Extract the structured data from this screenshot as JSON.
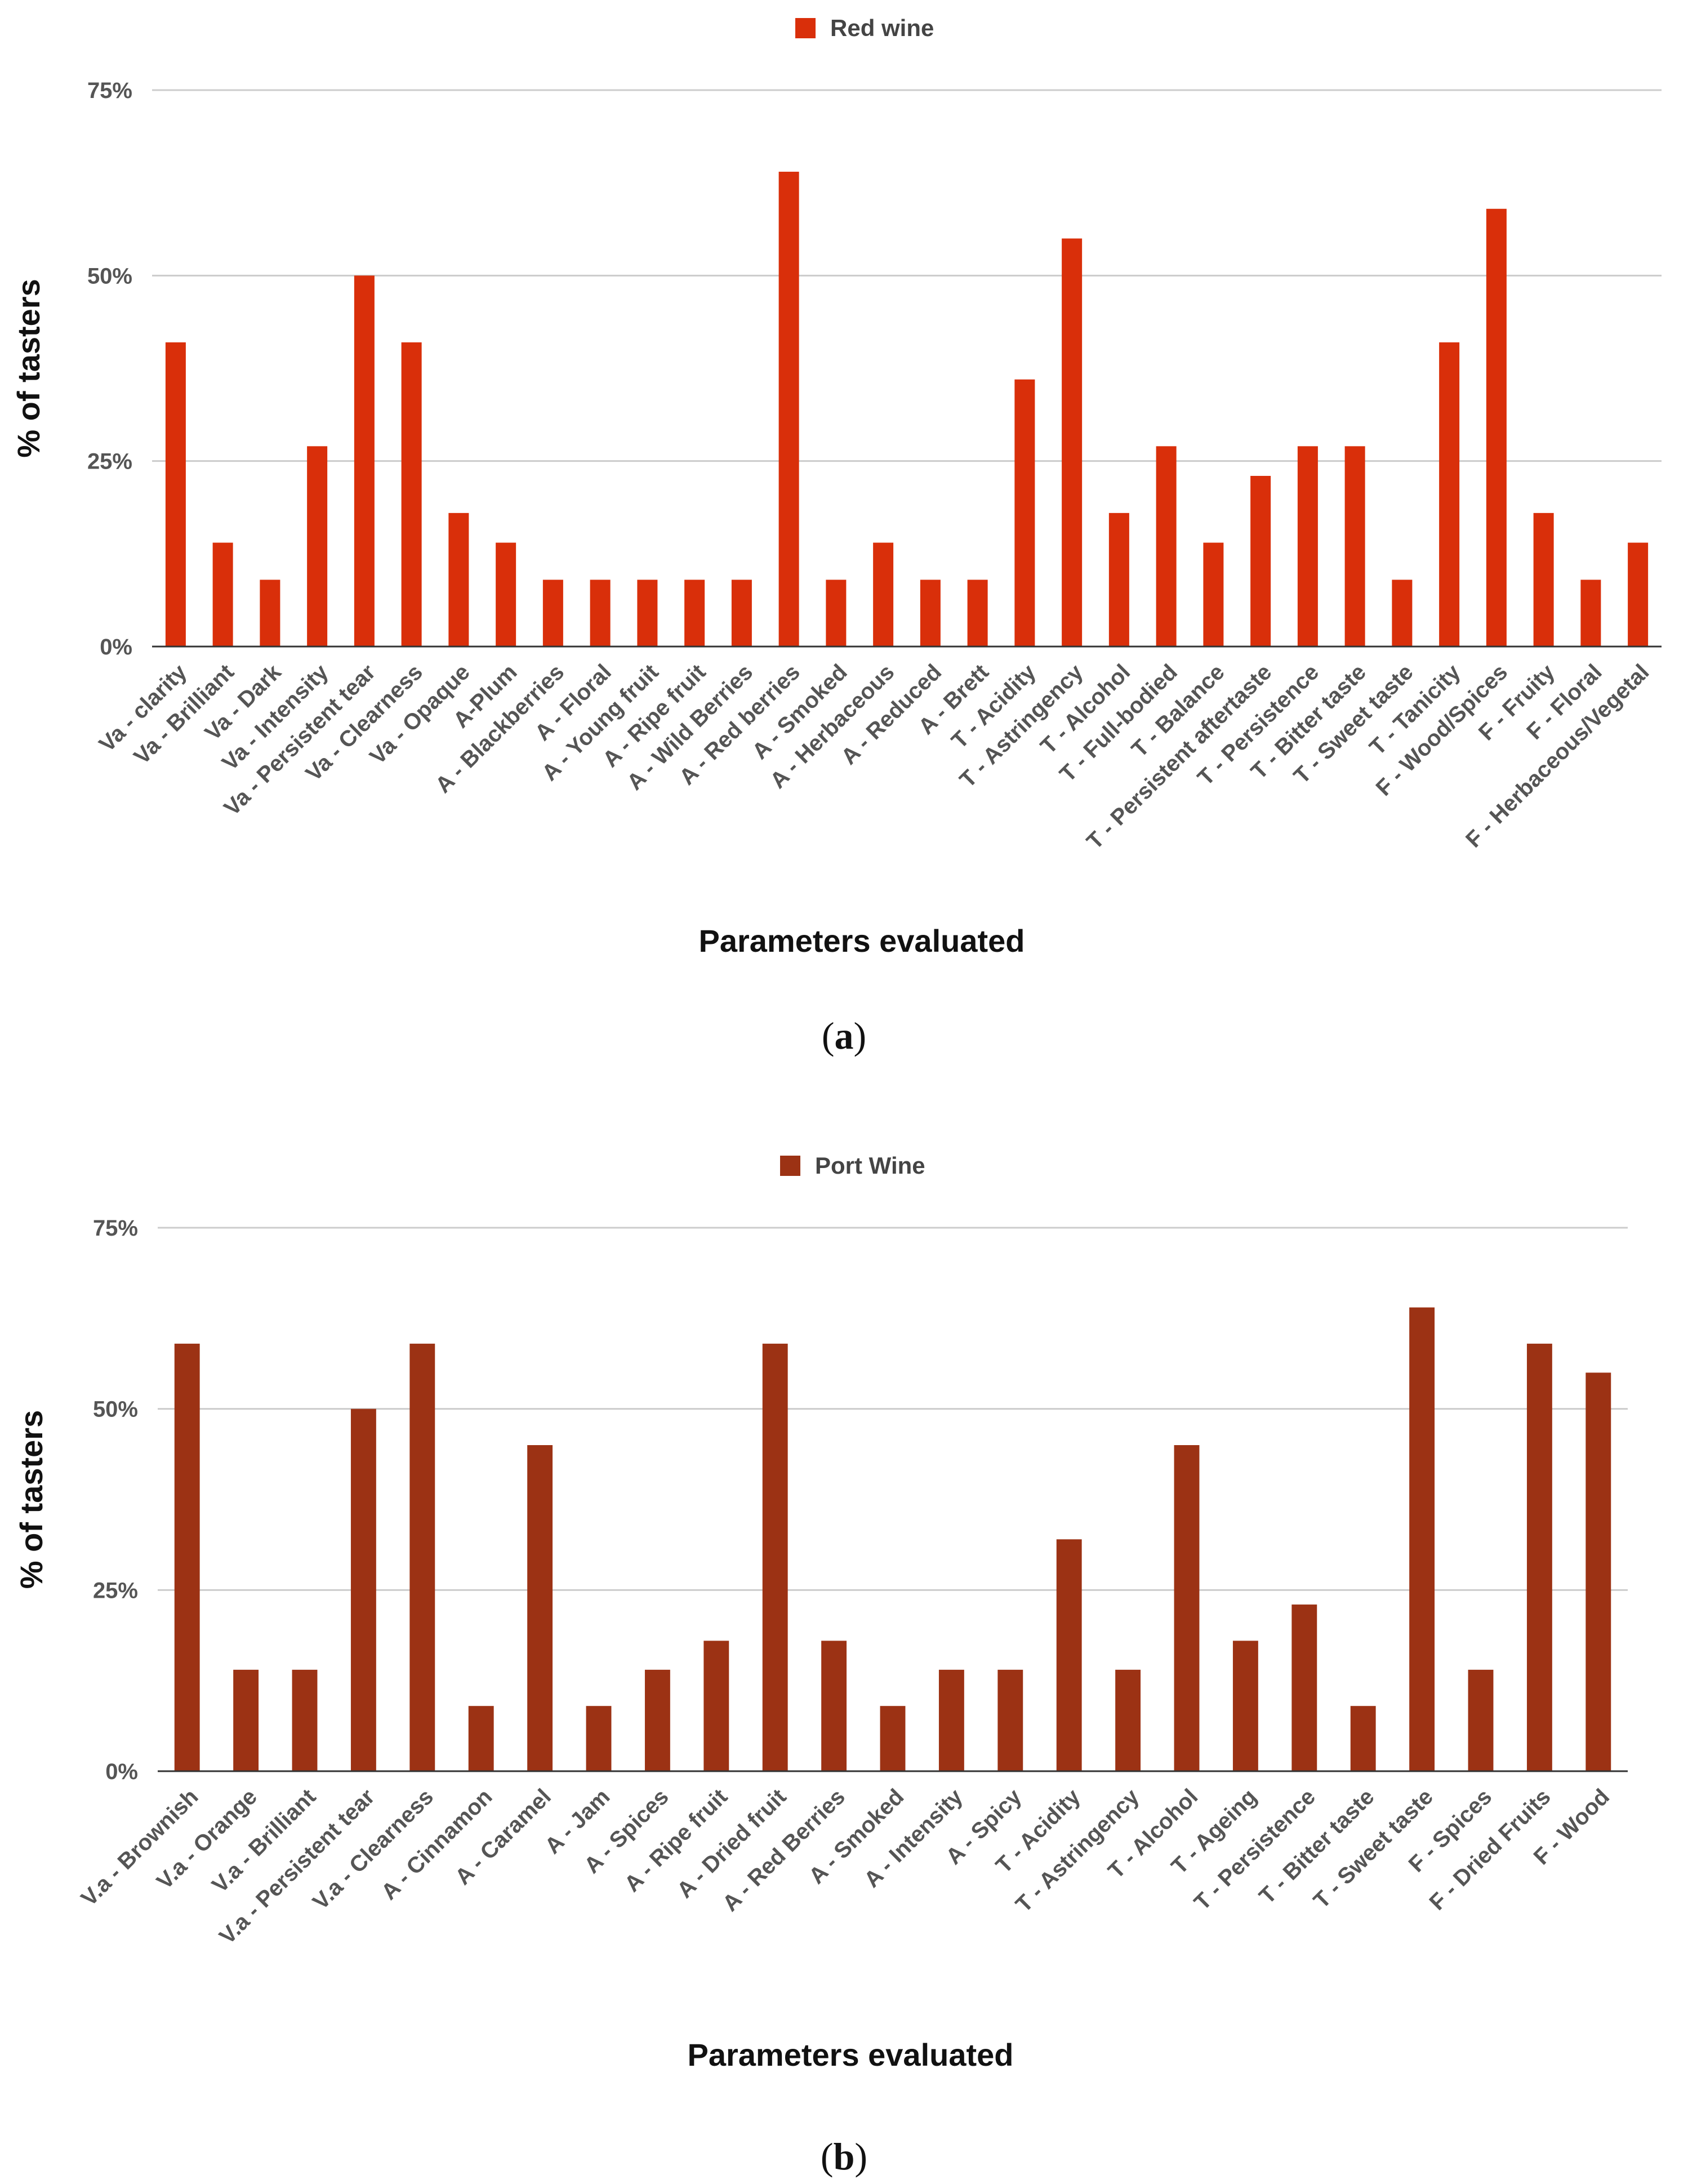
{
  "chart_data": [
    {
      "type": "bar",
      "title": "",
      "legend": "Red wine",
      "legend_position": "top-center",
      "color": "#d92f0a",
      "xlabel": "Parameters evaluated",
      "ylabel": "% of tasters",
      "ylim": [
        0,
        75
      ],
      "yticks": [
        "75%",
        "50%",
        "25%",
        "0%"
      ],
      "ytick_values": [
        75,
        50,
        25,
        0
      ],
      "grid": true,
      "categories": [
        "Va - clarity",
        "Va - Brilliant",
        "Va - Dark",
        "Va - Intensity",
        "Va - Persistent tear",
        "Va - Clearness",
        "Va - Opaque",
        "A-Plum",
        "A - Blackberries",
        "A - Floral",
        "A - Young fruit",
        "A - Ripe fruit",
        "A - Wild Berries",
        "A - Red berries",
        "A - Smoked",
        "A - Herbaceous",
        "A - Reduced",
        "A - Brett",
        "T - Acidity",
        "T - Astringency",
        "T - Alcohol",
        "T - Full-bodied",
        "T - Balance",
        "T - Persistent aftertaste",
        "T - Persistence",
        "T - Bitter taste",
        "T - Sweet taste",
        "T - Tanicity",
        "F - Wood/Spices",
        "F - Fruity",
        "F - Floral",
        "F - Herbaceous/Vegetal"
      ],
      "values": [
        41,
        14,
        9,
        27,
        50,
        41,
        18,
        14,
        9,
        9,
        9,
        9,
        9,
        64,
        9,
        14,
        9,
        9,
        36,
        55,
        18,
        27,
        14,
        23,
        27,
        27,
        9,
        41,
        59,
        18,
        9,
        14
      ],
      "caption": "a"
    },
    {
      "type": "bar",
      "title": "",
      "legend": "Port Wine",
      "legend_position": "top-center",
      "color": "#9c3214",
      "xlabel": "Parameters evaluated",
      "ylabel": "% of tasters",
      "ylim": [
        0,
        75
      ],
      "yticks": [
        "75%",
        "50%",
        "25%",
        "0%"
      ],
      "ytick_values": [
        75,
        50,
        25,
        0
      ],
      "grid": true,
      "categories": [
        "V.a - Brownish",
        "V.a - Orange",
        "V.a - Brilliant",
        "V.a - Persistent tear",
        "V.a - Clearness",
        "A - Cinnamon",
        "A - Caramel",
        "A - Jam",
        "A - Spices",
        "A - Ripe fruit",
        "A - Dried fruit",
        "A - Red Berries",
        "A - Smoked",
        "A - Intensity",
        "A - Spicy",
        "T - Acidity",
        "T - Astringency",
        "T - Alcohol",
        "T - Ageing",
        "T - Persistence",
        "T - Bitter taste",
        "T - Sweet taste",
        "F - Spices",
        "F - Dried Fruits",
        "F - Wood"
      ],
      "values": [
        59,
        14,
        14,
        50,
        59,
        9,
        45,
        9,
        14,
        18,
        59,
        18,
        9,
        14,
        14,
        32,
        14,
        45,
        18,
        23,
        9,
        64,
        14,
        59,
        55
      ],
      "caption": "b"
    }
  ]
}
